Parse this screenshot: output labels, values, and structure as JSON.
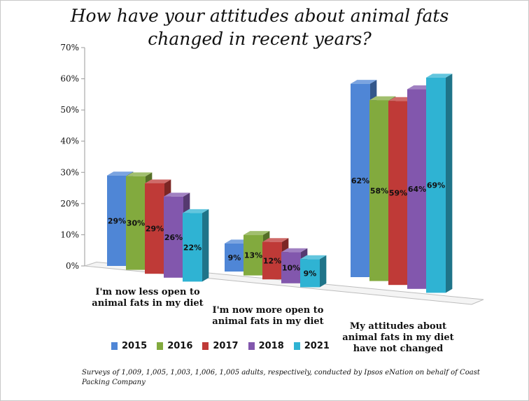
{
  "chart_data": {
    "type": "bar",
    "title_lines": [
      "How have your attitudes about animal fats",
      "changed in recent years?"
    ],
    "categories": [
      [
        "I'm now less open to",
        "animal fats in my diet"
      ],
      [
        "I'm now more open to",
        "animal fats in my diet"
      ],
      [
        "My attitudes about",
        "animal fats in my diet",
        "have not changed"
      ]
    ],
    "series": [
      {
        "name": "2015",
        "color": "#4f86d6",
        "values": [
          29,
          9,
          62
        ],
        "labels": [
          "29%",
          "9%",
          "62%"
        ]
      },
      {
        "name": "2016",
        "color": "#82aa3e",
        "values": [
          30,
          13,
          58
        ],
        "labels": [
          "30%",
          "13%",
          "58%"
        ]
      },
      {
        "name": "2017",
        "color": "#bf3a37",
        "values": [
          29,
          12,
          59
        ],
        "labels": [
          "29%",
          "12%",
          "59%"
        ]
      },
      {
        "name": "2018",
        "color": "#8257ad",
        "values": [
          26,
          10,
          64
        ],
        "labels": [
          "26%",
          "10%",
          "64%"
        ]
      },
      {
        "name": "2021",
        "color": "#2fb3d3",
        "values": [
          22,
          9,
          69
        ],
        "labels": [
          "22%",
          "9%",
          "69%"
        ]
      }
    ],
    "ylim": [
      0,
      70
    ],
    "yticks": [
      0,
      10,
      20,
      30,
      40,
      50,
      60,
      70
    ],
    "ytick_labels": [
      "0%",
      "10%",
      "20%",
      "30%",
      "40%",
      "50%",
      "60%",
      "70%"
    ],
    "legend_position": "bottom",
    "grid": false,
    "footnote": "Surveys of 1,009, 1,005, 1,003, 1,006, 1,005 adults, respectively, conducted by Ipsos eNation on behalf of Coast Packing Company"
  }
}
